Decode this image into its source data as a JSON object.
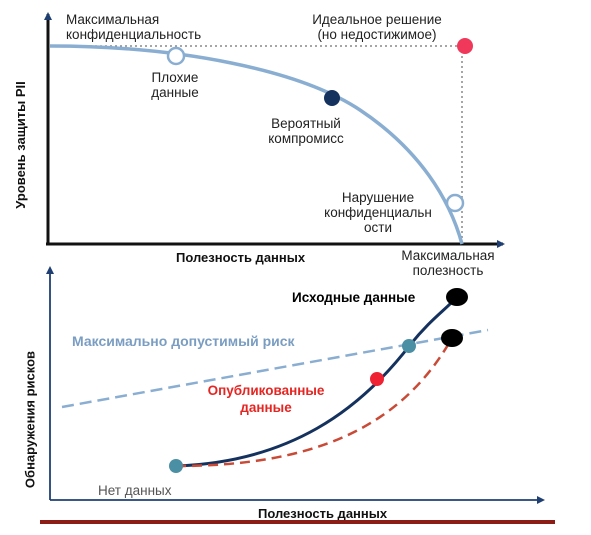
{
  "top_diagram": {
    "y_axis_label": "Уровень защиты PII",
    "x_axis_label": "Полезность данных",
    "max_privacy_label": "Максимальная конфиденциальность",
    "ideal_label_line1": "Идеальное решение",
    "ideal_label_line2": "(но недостижимое)",
    "bad_data_label": "Плохие данные",
    "compromise_label": "Вероятный компромисс",
    "privacy_violation_label": "Нарушение конфиденциальн ости",
    "max_utility_label": "Максимальная полезность"
  },
  "bottom_diagram": {
    "y_axis_label": "Обнаружения рисков",
    "x_axis_label": "Полезность данных",
    "source_data_label": "Исходные данные",
    "max_risk_label": "Максимально допустимый риск",
    "published_label": "Опубликованные данные",
    "no_data_label": "Нет данных"
  },
  "colors": {
    "curve": "#8aaed1",
    "axis": "#1f3f73",
    "dark_point": "#15325e",
    "red_point": "#ee2233",
    "ideal_point": "#f0395a",
    "teal_point": "#4a8fa3",
    "dashed_red": "#c94a36",
    "risk_line": "#8aaed1",
    "risk_text": "#7a9dc2",
    "red_text": "#e52521"
  }
}
